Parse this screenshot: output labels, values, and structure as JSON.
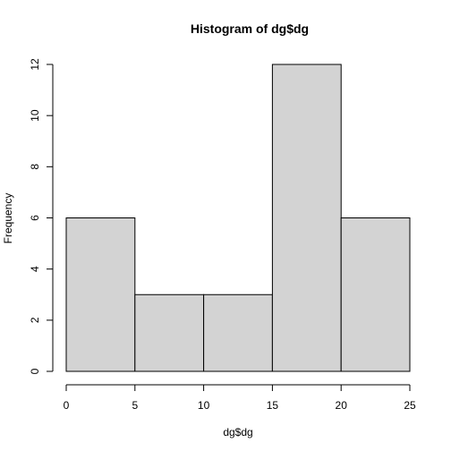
{
  "chart_data": {
    "type": "bar",
    "title": "Histogram of dg$dg",
    "xlabel": "dg$dg",
    "ylabel": "Frequency",
    "bins": [
      {
        "from": 0,
        "to": 5,
        "count": 6
      },
      {
        "from": 5,
        "to": 10,
        "count": 3
      },
      {
        "from": 10,
        "to": 15,
        "count": 3
      },
      {
        "from": 15,
        "to": 20,
        "count": 12
      },
      {
        "from": 20,
        "to": 25,
        "count": 6
      }
    ],
    "xlim": [
      0,
      25
    ],
    "ylim": [
      0,
      12
    ],
    "x_ticks": [
      0,
      5,
      10,
      15,
      20,
      25
    ],
    "y_ticks": [
      0,
      2,
      4,
      6,
      8,
      10,
      12
    ],
    "bar_color": "#d3d3d3",
    "grid": false
  }
}
